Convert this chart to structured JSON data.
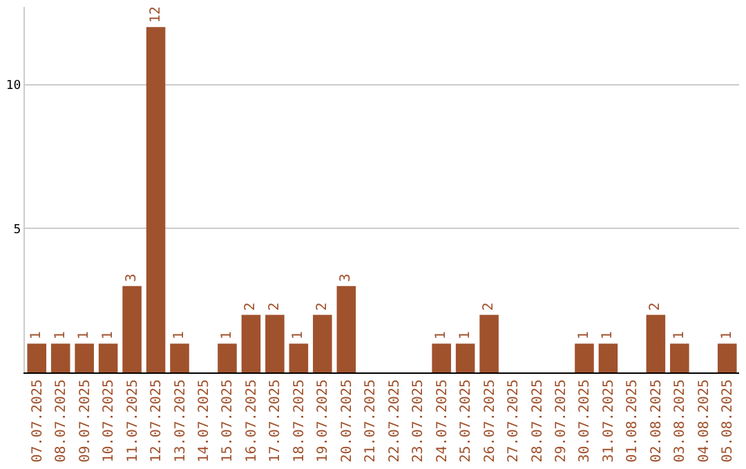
{
  "chart_data": {
    "type": "bar",
    "categories": [
      "07.07.2025",
      "08.07.2025",
      "09.07.2025",
      "10.07.2025",
      "11.07.2025",
      "12.07.2025",
      "13.07.2025",
      "14.07.2025",
      "15.07.2025",
      "16.07.2025",
      "17.07.2025",
      "18.07.2025",
      "19.07.2025",
      "20.07.2025",
      "21.07.2025",
      "22.07.2025",
      "23.07.2025",
      "24.07.2025",
      "25.07.2025",
      "26.07.2025",
      "27.07.2025",
      "28.07.2025",
      "29.07.2025",
      "30.07.2025",
      "31.07.2025",
      "01.08.2025",
      "02.08.2025",
      "03.08.2025",
      "04.08.2025",
      "05.08.2025"
    ],
    "values": [
      1,
      1,
      1,
      1,
      3,
      12,
      1,
      0,
      1,
      2,
      2,
      1,
      2,
      3,
      0,
      0,
      0,
      1,
      1,
      2,
      0,
      0,
      0,
      1,
      1,
      0,
      2,
      1,
      0,
      1
    ],
    "value_labels": [
      "1",
      "1",
      "1",
      "1",
      "3",
      "12",
      "1",
      null,
      "1",
      "2",
      "2",
      "1",
      "2",
      "3",
      null,
      null,
      null,
      "1",
      "1",
      "2",
      null,
      null,
      null,
      "1",
      "1",
      null,
      "2",
      "1",
      null,
      "1"
    ],
    "color": "#a0522d",
    "ylim": [
      0,
      12.7
    ],
    "yticks": [
      5,
      10
    ],
    "grid": "y"
  }
}
